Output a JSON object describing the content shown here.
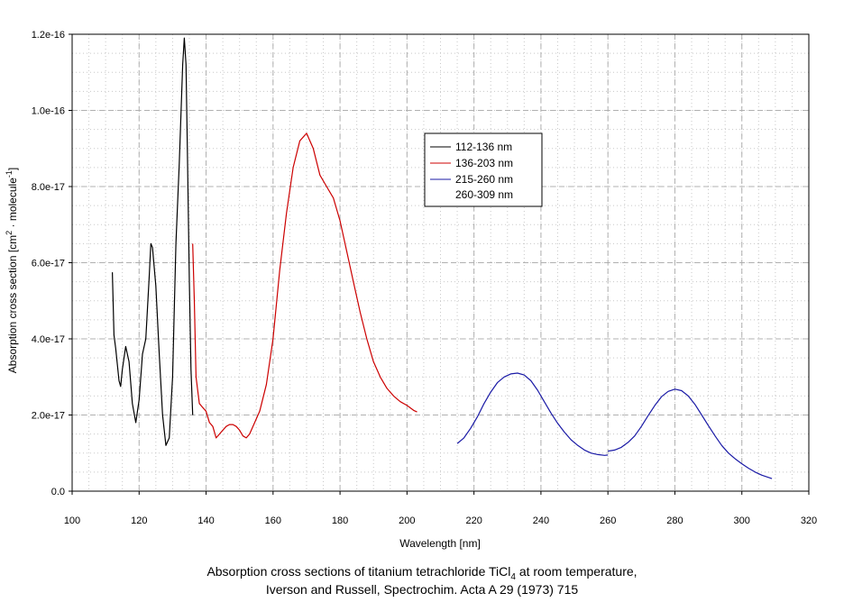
{
  "chart_data": {
    "type": "line",
    "xlabel": "Wavelength [nm]",
    "ylabel": "Absorption cross section [cm",
    "ylabel_sup1": "2",
    "ylabel_mid": " · molecule",
    "ylabel_sup2": "-1",
    "ylabel_end": "]",
    "xlim": [
      100,
      320
    ],
    "ylim": [
      0,
      1.2e-16
    ],
    "xticks": [
      100,
      120,
      140,
      160,
      180,
      200,
      220,
      240,
      260,
      280,
      300,
      320
    ],
    "yticks": [
      {
        "value": 0,
        "label": "0.0"
      },
      {
        "value": 2e-17,
        "label": "2.0e-17"
      },
      {
        "value": 4e-17,
        "label": "4.0e-17"
      },
      {
        "value": 6e-17,
        "label": "6.0e-17"
      },
      {
        "value": 8e-17,
        "label": "8.0e-17"
      },
      {
        "value": 1e-16,
        "label": "1.0e-16"
      },
      {
        "value": 1.2e-16,
        "label": "1.2e-16"
      }
    ],
    "grid": true,
    "legend_position": "upper-middle-right",
    "series": [
      {
        "name": "112-136 nm",
        "color": "#000000",
        "points": [
          [
            112,
            5.75e-17
          ],
          [
            112.5,
            4.1e-17
          ],
          [
            113,
            3.75e-17
          ],
          [
            114,
            2.9e-17
          ],
          [
            114.5,
            2.75e-17
          ],
          [
            115,
            3.2e-17
          ],
          [
            116,
            3.8e-17
          ],
          [
            117,
            3.4e-17
          ],
          [
            118,
            2.3e-17
          ],
          [
            119,
            1.8e-17
          ],
          [
            120,
            2.4e-17
          ],
          [
            121,
            3.6e-17
          ],
          [
            122,
            4e-17
          ],
          [
            123,
            5.6e-17
          ],
          [
            123.5,
            6.5e-17
          ],
          [
            124,
            6.4e-17
          ],
          [
            125,
            5.4e-17
          ],
          [
            126,
            3.6e-17
          ],
          [
            127,
            2e-17
          ],
          [
            128,
            1.2e-17
          ],
          [
            129,
            1.4e-17
          ],
          [
            130,
            3e-17
          ],
          [
            131,
            6.5e-17
          ],
          [
            132,
            8.6e-17
          ],
          [
            133,
            1.12e-16
          ],
          [
            133.5,
            1.19e-16
          ],
          [
            134,
            1.12e-16
          ],
          [
            134.5,
            8.5e-17
          ],
          [
            135,
            5.5e-17
          ],
          [
            135.5,
            3.2e-17
          ],
          [
            136,
            2e-17
          ]
        ]
      },
      {
        "name": "136-203 nm",
        "color": "#cc0000",
        "points": [
          [
            136,
            6.5e-17
          ],
          [
            136.5,
            5e-17
          ],
          [
            137,
            3e-17
          ],
          [
            138,
            2.3e-17
          ],
          [
            139,
            2.2e-17
          ],
          [
            140,
            2.1e-17
          ],
          [
            141,
            1.8e-17
          ],
          [
            142,
            1.7e-17
          ],
          [
            143,
            1.4e-17
          ],
          [
            144,
            1.5e-17
          ],
          [
            145,
            1.6e-17
          ],
          [
            146,
            1.7e-17
          ],
          [
            147,
            1.75e-17
          ],
          [
            148,
            1.75e-17
          ],
          [
            149,
            1.7e-17
          ],
          [
            150,
            1.6e-17
          ],
          [
            151,
            1.45e-17
          ],
          [
            152,
            1.4e-17
          ],
          [
            153,
            1.5e-17
          ],
          [
            154,
            1.7e-17
          ],
          [
            156,
            2.1e-17
          ],
          [
            158,
            2.8e-17
          ],
          [
            160,
            4e-17
          ],
          [
            162,
            5.8e-17
          ],
          [
            164,
            7.3e-17
          ],
          [
            166,
            8.5e-17
          ],
          [
            168,
            9.2e-17
          ],
          [
            170,
            9.4e-17
          ],
          [
            172,
            9e-17
          ],
          [
            174,
            8.3e-17
          ],
          [
            176,
            8e-17
          ],
          [
            178,
            7.7e-17
          ],
          [
            180,
            7.1e-17
          ],
          [
            182,
            6.3e-17
          ],
          [
            184,
            5.5e-17
          ],
          [
            186,
            4.7e-17
          ],
          [
            188,
            4e-17
          ],
          [
            190,
            3.4e-17
          ],
          [
            192,
            3e-17
          ],
          [
            194,
            2.7e-17
          ],
          [
            196,
            2.5e-17
          ],
          [
            198,
            2.35e-17
          ],
          [
            200,
            2.25e-17
          ],
          [
            202,
            2.12e-17
          ],
          [
            203,
            2.08e-17
          ]
        ]
      },
      {
        "name": "215-260 nm",
        "color": "#1a1aa6",
        "points": [
          [
            215,
            1.25e-17
          ],
          [
            217,
            1.4e-17
          ],
          [
            219,
            1.65e-17
          ],
          [
            221,
            1.95e-17
          ],
          [
            223,
            2.3e-17
          ],
          [
            225,
            2.6e-17
          ],
          [
            227,
            2.85e-17
          ],
          [
            229,
            3e-17
          ],
          [
            231,
            3.08e-17
          ],
          [
            233,
            3.1e-17
          ],
          [
            235,
            3.05e-17
          ],
          [
            237,
            2.9e-17
          ],
          [
            239,
            2.65e-17
          ],
          [
            241,
            2.35e-17
          ],
          [
            243,
            2.05e-17
          ],
          [
            245,
            1.78e-17
          ],
          [
            247,
            1.55e-17
          ],
          [
            249,
            1.35e-17
          ],
          [
            251,
            1.2e-17
          ],
          [
            253,
            1.08e-17
          ],
          [
            255,
            1e-17
          ],
          [
            257,
            9.6e-18
          ],
          [
            259,
            9.4e-18
          ],
          [
            260,
            9.5e-18
          ]
        ]
      },
      {
        "name": "260-309 nm",
        "color": "#1a1aa6",
        "points": [
          [
            260,
            1.05e-17
          ],
          [
            262,
            1.08e-17
          ],
          [
            264,
            1.15e-17
          ],
          [
            266,
            1.28e-17
          ],
          [
            268,
            1.45e-17
          ],
          [
            270,
            1.7e-17
          ],
          [
            272,
            1.98e-17
          ],
          [
            274,
            2.25e-17
          ],
          [
            276,
            2.48e-17
          ],
          [
            278,
            2.62e-17
          ],
          [
            280,
            2.68e-17
          ],
          [
            282,
            2.64e-17
          ],
          [
            284,
            2.5e-17
          ],
          [
            286,
            2.28e-17
          ],
          [
            288,
            2e-17
          ],
          [
            290,
            1.72e-17
          ],
          [
            292,
            1.45e-17
          ],
          [
            294,
            1.2e-17
          ],
          [
            296,
            1e-17
          ],
          [
            298,
            8.5e-18
          ],
          [
            300,
            7.2e-18
          ],
          [
            302,
            6e-18
          ],
          [
            304,
            5e-18
          ],
          [
            306,
            4.2e-18
          ],
          [
            308,
            3.6e-18
          ],
          [
            309,
            3.3e-18
          ]
        ]
      }
    ],
    "legend": [
      {
        "label": "112-136 nm",
        "color": "#000000"
      },
      {
        "label": "136-203 nm",
        "color": "#cc0000"
      },
      {
        "label": "215-260 nm",
        "color": "#1a1aa6"
      },
      {
        "label": "260-309 nm",
        "color": null
      }
    ]
  },
  "caption": {
    "line1_before": "Absorption cross sections of titanium tetrachloride TiCl",
    "line1_sub": "4",
    "line1_after": " at room temperature,",
    "line2": "Iverson and Russell, Spectrochim. Acta A 29 (1973) 715"
  }
}
